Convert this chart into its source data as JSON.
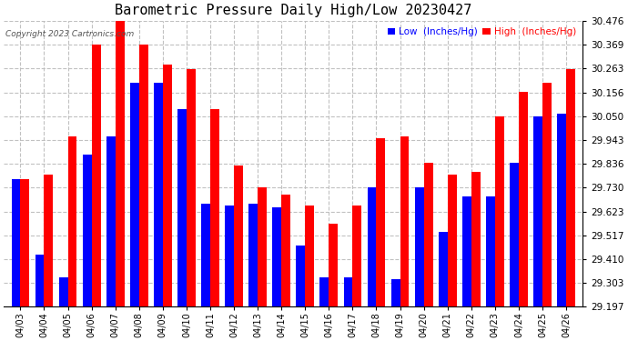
{
  "title": "Barometric Pressure Daily High/Low 20230427",
  "copyright": "Copyright 2023 Cartronics.com",
  "legend_low": "Low  (Inches/Hg)",
  "legend_high": "High  (Inches/Hg)",
  "categories": [
    "04/03",
    "04/04",
    "04/05",
    "04/06",
    "04/07",
    "04/08",
    "04/09",
    "04/10",
    "04/11",
    "04/12",
    "04/13",
    "04/14",
    "04/15",
    "04/16",
    "04/17",
    "04/18",
    "04/19",
    "04/20",
    "04/21",
    "04/22",
    "04/23",
    "04/24",
    "04/25",
    "04/26"
  ],
  "low_values": [
    29.77,
    29.43,
    29.33,
    29.88,
    29.96,
    30.2,
    30.2,
    30.08,
    29.66,
    29.65,
    29.66,
    29.64,
    29.47,
    29.33,
    29.33,
    29.73,
    29.32,
    29.73,
    29.53,
    29.69,
    29.69,
    29.84,
    30.05,
    30.06
  ],
  "high_values": [
    29.77,
    29.79,
    29.96,
    30.37,
    30.476,
    30.37,
    30.28,
    30.26,
    30.08,
    29.83,
    29.73,
    29.7,
    29.65,
    29.57,
    29.65,
    29.95,
    29.96,
    29.84,
    29.79,
    29.8,
    30.05,
    30.16,
    30.2,
    30.26
  ],
  "ymin": 29.197,
  "ymax": 30.476,
  "yticks": [
    29.197,
    29.303,
    29.41,
    29.517,
    29.623,
    29.73,
    29.836,
    29.943,
    30.05,
    30.156,
    30.263,
    30.369,
    30.476
  ],
  "low_color": "#0000ff",
  "high_color": "#ff0000",
  "bg_color": "#ffffff",
  "grid_color": "#bbbbbb",
  "title_fontsize": 11,
  "bar_width": 0.38
}
